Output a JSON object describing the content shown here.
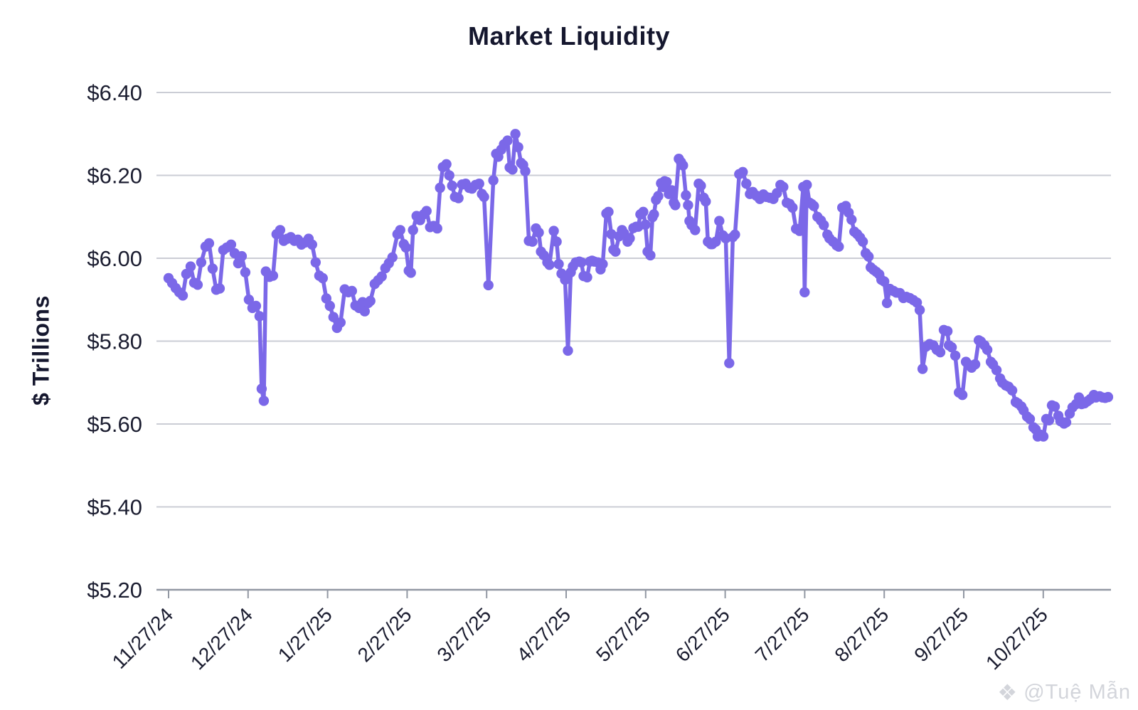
{
  "page": {
    "background": "#ffffff",
    "watermark": {
      "icon": "❖",
      "handle": "@Tuệ Mẫn"
    }
  },
  "chart_data": {
    "type": "line",
    "title": "Market Liquidity",
    "xlabel": "",
    "ylabel": "$ Trillions",
    "series_name": "Market Liquidity ($ Trillions)",
    "line_color": "#7b68e8",
    "marker": "circle",
    "grid": "horizontal",
    "legend": "none",
    "ylim": [
      5.2,
      6.4
    ],
    "y_ticks": [
      6.4,
      6.2,
      6.0,
      5.8,
      5.6,
      5.4,
      5.2
    ],
    "y_tick_labels": [
      "$6.40",
      "$6.20",
      "$6.00",
      "$5.80",
      "$5.60",
      "$5.40",
      "$5.20"
    ],
    "x_tick_labels": [
      "11/27/24",
      "12/27/24",
      "1/27/25",
      "2/27/25",
      "3/27/25",
      "4/27/25",
      "5/27/25",
      "6/27/25",
      "7/27/25",
      "8/27/25",
      "9/27/25",
      "10/27/25"
    ],
    "x_unit": "months after 11/27/24 (daily observations)",
    "points": [
      [
        0.0,
        5.952
      ],
      [
        0.045,
        5.94
      ],
      [
        0.089,
        5.928
      ],
      [
        0.134,
        5.918
      ],
      [
        0.179,
        5.91
      ],
      [
        0.223,
        5.962
      ],
      [
        0.277,
        5.98
      ],
      [
        0.322,
        5.941
      ],
      [
        0.366,
        5.936
      ],
      [
        0.411,
        5.99
      ],
      [
        0.465,
        6.028
      ],
      [
        0.509,
        6.036
      ],
      [
        0.554,
        5.975
      ],
      [
        0.599,
        5.924
      ],
      [
        0.643,
        5.927
      ],
      [
        0.688,
        6.02
      ],
      [
        0.733,
        6.026
      ],
      [
        0.786,
        6.033
      ],
      [
        0.831,
        6.012
      ],
      [
        0.876,
        5.988
      ],
      [
        0.92,
        6.005
      ],
      [
        0.965,
        5.966
      ],
      [
        1.01,
        5.9
      ],
      [
        1.055,
        5.88
      ],
      [
        1.099,
        5.885
      ],
      [
        1.144,
        5.86
      ],
      [
        1.171,
        5.685
      ],
      [
        1.198,
        5.656
      ],
      [
        1.224,
        5.968
      ],
      [
        1.269,
        5.955
      ],
      [
        1.314,
        5.958
      ],
      [
        1.358,
        6.058
      ],
      [
        1.403,
        6.068
      ],
      [
        1.448,
        6.042
      ],
      [
        1.492,
        6.047
      ],
      [
        1.537,
        6.051
      ],
      [
        1.582,
        6.042
      ],
      [
        1.627,
        6.045
      ],
      [
        1.671,
        6.033
      ],
      [
        1.716,
        6.038
      ],
      [
        1.761,
        6.047
      ],
      [
        1.805,
        6.033
      ],
      [
        1.85,
        5.99
      ],
      [
        1.895,
        5.958
      ],
      [
        1.939,
        5.952
      ],
      [
        1.984,
        5.903
      ],
      [
        2.029,
        5.885
      ],
      [
        2.073,
        5.858
      ],
      [
        2.118,
        5.832
      ],
      [
        2.163,
        5.845
      ],
      [
        2.216,
        5.925
      ],
      [
        2.261,
        5.918
      ],
      [
        2.306,
        5.921
      ],
      [
        2.35,
        5.886
      ],
      [
        2.395,
        5.88
      ],
      [
        2.44,
        5.894
      ],
      [
        2.467,
        5.872
      ],
      [
        2.511,
        5.892
      ],
      [
        2.538,
        5.897
      ],
      [
        2.592,
        5.938
      ],
      [
        2.636,
        5.947
      ],
      [
        2.681,
        5.956
      ],
      [
        2.726,
        5.976
      ],
      [
        2.77,
        5.988
      ],
      [
        2.815,
        6.002
      ],
      [
        2.878,
        6.058
      ],
      [
        2.913,
        6.068
      ],
      [
        2.958,
        6.034
      ],
      [
        2.985,
        6.026
      ],
      [
        3.021,
        5.97
      ],
      [
        3.047,
        5.965
      ],
      [
        3.074,
        6.068
      ],
      [
        3.119,
        6.102
      ],
      [
        3.164,
        6.092
      ],
      [
        3.208,
        6.106
      ],
      [
        3.244,
        6.114
      ],
      [
        3.289,
        6.075
      ],
      [
        3.333,
        6.078
      ],
      [
        3.378,
        6.072
      ],
      [
        3.414,
        6.17
      ],
      [
        3.45,
        6.22
      ],
      [
        3.494,
        6.227
      ],
      [
        3.53,
        6.2
      ],
      [
        3.566,
        6.175
      ],
      [
        3.602,
        6.148
      ],
      [
        3.646,
        6.145
      ],
      [
        3.691,
        6.178
      ],
      [
        3.736,
        6.18
      ],
      [
        3.78,
        6.17
      ],
      [
        3.816,
        6.168
      ],
      [
        3.861,
        6.177
      ],
      [
        3.906,
        6.18
      ],
      [
        3.941,
        6.155
      ],
      [
        3.968,
        6.148
      ],
      [
        4.022,
        5.935
      ],
      [
        4.084,
        6.188
      ],
      [
        4.12,
        6.252
      ],
      [
        4.147,
        6.245
      ],
      [
        4.183,
        6.262
      ],
      [
        4.218,
        6.275
      ],
      [
        4.263,
        6.284
      ],
      [
        4.29,
        6.219
      ],
      [
        4.325,
        6.214
      ],
      [
        4.361,
        6.3
      ],
      [
        4.397,
        6.268
      ],
      [
        4.433,
        6.23
      ],
      [
        4.459,
        6.225
      ],
      [
        4.486,
        6.21
      ],
      [
        4.531,
        6.042
      ],
      [
        4.576,
        6.04
      ],
      [
        4.62,
        6.072
      ],
      [
        4.656,
        6.062
      ],
      [
        4.683,
        6.016
      ],
      [
        4.719,
        6.007
      ],
      [
        4.763,
        5.99
      ],
      [
        4.79,
        5.984
      ],
      [
        4.844,
        6.066
      ],
      [
        4.88,
        6.04
      ],
      [
        4.906,
        5.986
      ],
      [
        4.942,
        5.963
      ],
      [
        4.987,
        5.948
      ],
      [
        5.022,
        5.777
      ],
      [
        5.058,
        5.966
      ],
      [
        5.085,
        5.98
      ],
      [
        5.121,
        5.99
      ],
      [
        5.165,
        5.992
      ],
      [
        5.192,
        5.99
      ],
      [
        5.219,
        5.957
      ],
      [
        5.264,
        5.954
      ],
      [
        5.299,
        5.992
      ],
      [
        5.326,
        5.994
      ],
      [
        5.353,
        5.992
      ],
      [
        5.398,
        5.99
      ],
      [
        5.433,
        5.973
      ],
      [
        5.46,
        5.986
      ],
      [
        5.505,
        6.108
      ],
      [
        5.532,
        6.112
      ],
      [
        5.568,
        6.058
      ],
      [
        5.594,
        6.021
      ],
      [
        5.621,
        6.016
      ],
      [
        5.666,
        6.053
      ],
      [
        5.702,
        6.068
      ],
      [
        5.729,
        6.06
      ],
      [
        5.773,
        6.04
      ],
      [
        5.8,
        6.048
      ],
      [
        5.845,
        6.073
      ],
      [
        5.881,
        6.076
      ],
      [
        5.907,
        6.076
      ],
      [
        5.934,
        6.106
      ],
      [
        5.97,
        6.112
      ],
      [
        5.997,
        6.081
      ],
      [
        6.024,
        6.016
      ],
      [
        6.059,
        6.007
      ],
      [
        6.086,
        6.099
      ],
      [
        6.104,
        6.106
      ],
      [
        6.131,
        6.141
      ],
      [
        6.158,
        6.15
      ],
      [
        6.193,
        6.181
      ],
      [
        6.22,
        6.172
      ],
      [
        6.238,
        6.186
      ],
      [
        6.265,
        6.184
      ],
      [
        6.292,
        6.155
      ],
      [
        6.327,
        6.164
      ],
      [
        6.354,
        6.134
      ],
      [
        6.372,
        6.128
      ],
      [
        6.417,
        6.24
      ],
      [
        6.444,
        6.232
      ],
      [
        6.47,
        6.224
      ],
      [
        6.506,
        6.152
      ],
      [
        6.533,
        6.128
      ],
      [
        6.551,
        6.09
      ],
      [
        6.578,
        6.08
      ],
      [
        6.622,
        6.068
      ],
      [
        6.667,
        6.18
      ],
      [
        6.694,
        6.175
      ],
      [
        6.73,
        6.146
      ],
      [
        6.756,
        6.137
      ],
      [
        6.783,
        6.04
      ],
      [
        6.819,
        6.034
      ],
      [
        6.837,
        6.034
      ],
      [
        6.882,
        6.04
      ],
      [
        6.926,
        6.09
      ],
      [
        6.971,
        6.055
      ],
      [
        7.007,
        6.048
      ],
      [
        7.051,
        5.747
      ],
      [
        7.096,
        6.051
      ],
      [
        7.123,
        6.057
      ],
      [
        7.176,
        6.203
      ],
      [
        7.221,
        6.208
      ],
      [
        7.266,
        6.18
      ],
      [
        7.311,
        6.155
      ],
      [
        7.346,
        6.16
      ],
      [
        7.391,
        6.151
      ],
      [
        7.436,
        6.143
      ],
      [
        7.48,
        6.154
      ],
      [
        7.516,
        6.148
      ],
      [
        7.561,
        6.146
      ],
      [
        7.606,
        6.143
      ],
      [
        7.65,
        6.157
      ],
      [
        7.695,
        6.177
      ],
      [
        7.731,
        6.172
      ],
      [
        7.775,
        6.134
      ],
      [
        7.811,
        6.131
      ],
      [
        7.847,
        6.122
      ],
      [
        7.891,
        6.071
      ],
      [
        7.936,
        6.066
      ],
      [
        7.981,
        6.172
      ],
      [
        7.999,
        5.918
      ],
      [
        8.026,
        6.177
      ],
      [
        8.061,
        6.134
      ],
      [
        8.088,
        6.131
      ],
      [
        8.115,
        6.126
      ],
      [
        8.16,
        6.1
      ],
      [
        8.204,
        6.091
      ],
      [
        8.24,
        6.08
      ],
      [
        8.285,
        6.057
      ],
      [
        8.311,
        6.048
      ],
      [
        8.356,
        6.04
      ],
      [
        8.401,
        6.031
      ],
      [
        8.428,
        6.028
      ],
      [
        8.472,
        6.122
      ],
      [
        8.517,
        6.126
      ],
      [
        8.553,
        6.11
      ],
      [
        8.589,
        6.093
      ],
      [
        8.624,
        6.064
      ],
      [
        8.66,
        6.058
      ],
      [
        8.696,
        6.05
      ],
      [
        8.731,
        6.04
      ],
      [
        8.767,
        6.012
      ],
      [
        8.803,
        6.004
      ],
      [
        8.83,
        5.978
      ],
      [
        8.866,
        5.972
      ],
      [
        8.901,
        5.967
      ],
      [
        8.937,
        5.961
      ],
      [
        8.964,
        5.948
      ],
      [
        9.0,
        5.944
      ],
      [
        9.035,
        5.892
      ],
      [
        9.071,
        5.926
      ],
      [
        9.116,
        5.921
      ],
      [
        9.152,
        5.917
      ],
      [
        9.196,
        5.916
      ],
      [
        9.241,
        5.904
      ],
      [
        9.277,
        5.907
      ],
      [
        9.321,
        5.904
      ],
      [
        9.366,
        5.899
      ],
      [
        9.411,
        5.893
      ],
      [
        9.446,
        5.875
      ],
      [
        9.482,
        5.733
      ],
      [
        9.527,
        5.787
      ],
      [
        9.571,
        5.793
      ],
      [
        9.616,
        5.79
      ],
      [
        9.661,
        5.779
      ],
      [
        9.705,
        5.773
      ],
      [
        9.75,
        5.827
      ],
      [
        9.795,
        5.824
      ],
      [
        9.813,
        5.79
      ],
      [
        9.849,
        5.785
      ],
      [
        9.894,
        5.765
      ],
      [
        9.939,
        5.676
      ],
      [
        9.983,
        5.67
      ],
      [
        10.028,
        5.75
      ],
      [
        10.055,
        5.744
      ],
      [
        10.099,
        5.736
      ],
      [
        10.144,
        5.744
      ],
      [
        10.189,
        5.802
      ],
      [
        10.216,
        5.799
      ],
      [
        10.26,
        5.79
      ],
      [
        10.296,
        5.779
      ],
      [
        10.341,
        5.75
      ],
      [
        10.368,
        5.744
      ],
      [
        10.412,
        5.73
      ],
      [
        10.457,
        5.71
      ],
      [
        10.484,
        5.7
      ],
      [
        10.528,
        5.693
      ],
      [
        10.564,
        5.69
      ],
      [
        10.609,
        5.681
      ],
      [
        10.654,
        5.653
      ],
      [
        10.68,
        5.65
      ],
      [
        10.725,
        5.642
      ],
      [
        10.752,
        5.633
      ],
      [
        10.796,
        5.618
      ],
      [
        10.832,
        5.612
      ],
      [
        10.877,
        5.592
      ],
      [
        10.904,
        5.587
      ],
      [
        10.93,
        5.57
      ],
      [
        10.966,
        5.574
      ],
      [
        11.002,
        5.57
      ],
      [
        11.038,
        5.612
      ],
      [
        11.073,
        5.609
      ],
      [
        11.109,
        5.645
      ],
      [
        11.145,
        5.642
      ],
      [
        11.19,
        5.62
      ],
      [
        11.216,
        5.607
      ],
      [
        11.261,
        5.601
      ],
      [
        11.288,
        5.604
      ],
      [
        11.333,
        5.625
      ],
      [
        11.368,
        5.64
      ],
      [
        11.413,
        5.648
      ],
      [
        11.449,
        5.664
      ],
      [
        11.484,
        5.648
      ],
      [
        11.52,
        5.65
      ],
      [
        11.556,
        5.655
      ],
      [
        11.592,
        5.66
      ],
      [
        11.636,
        5.67
      ],
      [
        11.663,
        5.664
      ],
      [
        11.708,
        5.667
      ],
      [
        11.744,
        5.664
      ],
      [
        11.779,
        5.663
      ],
      [
        11.815,
        5.665
      ]
    ],
    "colors": {
      "line": "#7b68e8",
      "grid": "#cbcdd5",
      "axis": "#9298a3",
      "tick_text": "#1b1d30",
      "title_text": "#15172e",
      "watermark": "#d3d5db"
    }
  }
}
